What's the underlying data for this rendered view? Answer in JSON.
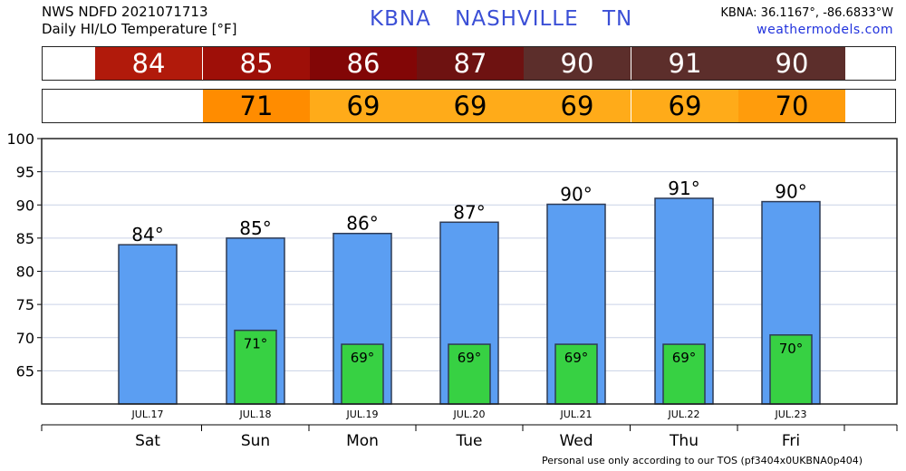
{
  "header": {
    "line1": "NWS NDFD 2021071713",
    "line2": "Daily HI/LO Temperature [°F]",
    "station": "KBNA",
    "city": "NASHVILLE",
    "state": "TN",
    "coords": "KBNA: 36.1167°, -86.6833°W",
    "site": "weathermodels.com"
  },
  "footer": "Personal use only according to our TOS (pf3404x0UKBNA0p404)",
  "strips": {
    "hi": [
      {
        "text": "84",
        "color": "#b11a0b"
      },
      {
        "text": "85",
        "color": "#9e0f08"
      },
      {
        "text": "86",
        "color": "#820606"
      },
      {
        "text": "87",
        "color": "#6e1211"
      },
      {
        "text": "90",
        "color": "#5c2e2b"
      },
      {
        "text": "91",
        "color": "#5c2e2b"
      },
      {
        "text": "90",
        "color": "#5c2e2b"
      }
    ],
    "lo": [
      {
        "text": "",
        "color": "#ffffff"
      },
      {
        "text": "71",
        "color": "#ff8c00"
      },
      {
        "text": "69",
        "color": "#ffab19"
      },
      {
        "text": "69",
        "color": "#ffab19"
      },
      {
        "text": "69",
        "color": "#ffab19"
      },
      {
        "text": "69",
        "color": "#ffab19"
      },
      {
        "text": "70",
        "color": "#ff9c0c"
      }
    ]
  },
  "chart_data": {
    "type": "bar",
    "ylim": [
      60,
      100
    ],
    "yticks": [
      65,
      70,
      75,
      80,
      85,
      90,
      95,
      100
    ],
    "grid": true,
    "categories": [
      "Sat",
      "Sun",
      "Mon",
      "Tue",
      "Wed",
      "Thu",
      "Fri"
    ],
    "dates": [
      "JUL.17",
      "JUL.18",
      "JUL.19",
      "JUL.20",
      "JUL.21",
      "JUL.22",
      "JUL.23"
    ],
    "hi_label_suffix": "°",
    "series": [
      {
        "values": [
          84,
          85,
          85.7,
          87.4,
          90.1,
          91,
          90.5
        ],
        "labels": [
          "84",
          "85",
          "86",
          "87",
          "90",
          "91",
          "90"
        ],
        "color": "#5b9ef2"
      },
      {
        "values": [
          null,
          71.1,
          69,
          69,
          69,
          69,
          70.4
        ],
        "labels": [
          "",
          "71",
          "69",
          "69",
          "69",
          "69",
          "70"
        ],
        "color": "#37d143"
      }
    ]
  }
}
